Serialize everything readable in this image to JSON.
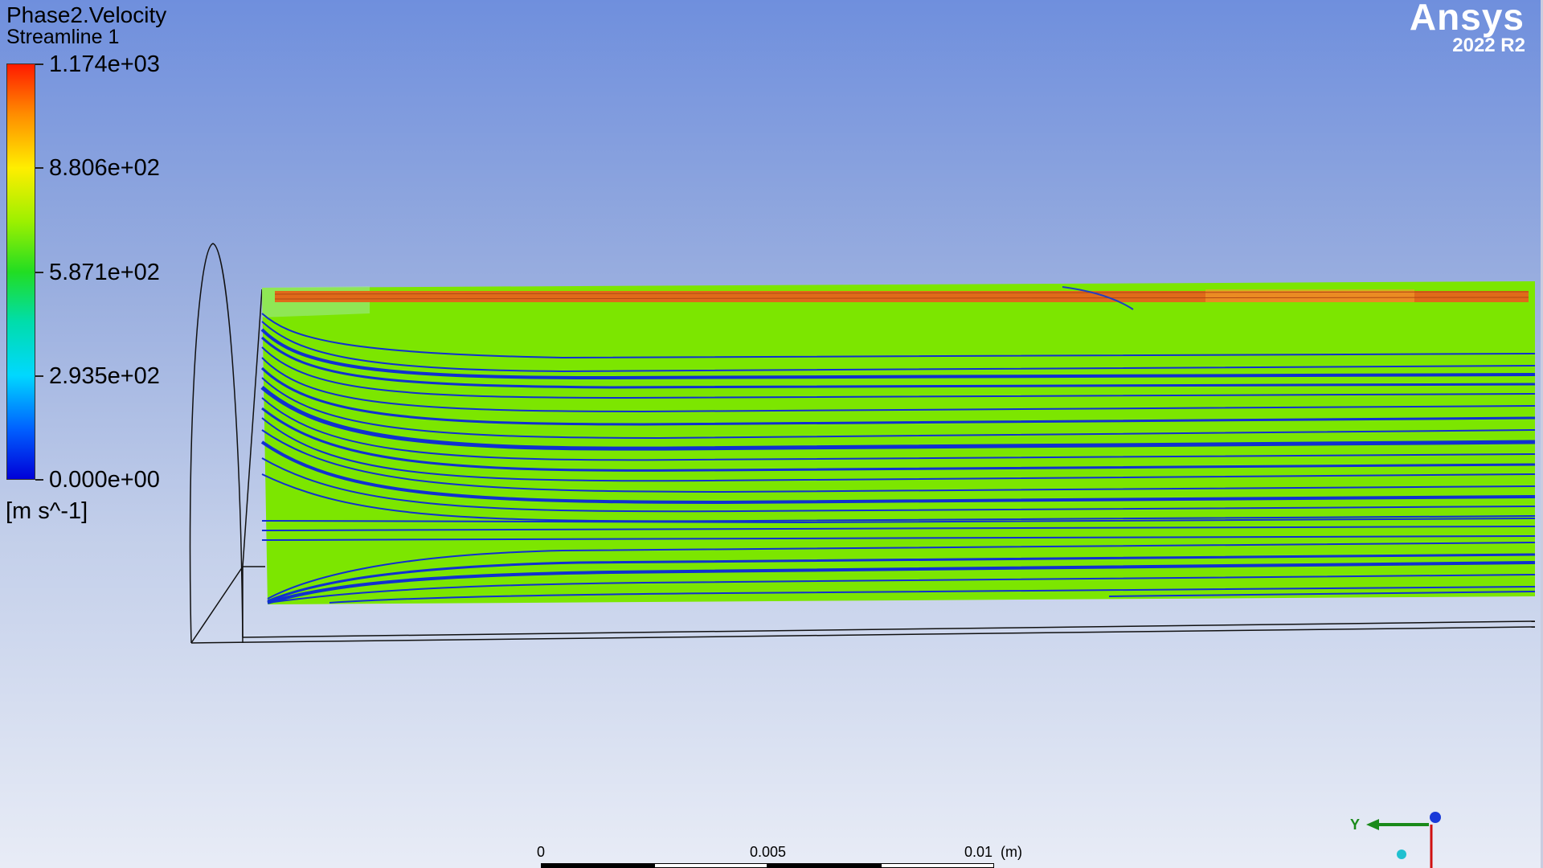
{
  "legend": {
    "title": "Phase2.Velocity",
    "subtitle": "Streamline 1",
    "ticks": [
      "1.174e+03",
      "8.806e+02",
      "5.871e+02",
      "2.935e+02",
      "0.000e+00"
    ],
    "unit": "[m s^-1]",
    "colormap": [
      "#ff1a00",
      "#ff8c00",
      "#ffee00",
      "#9cf000",
      "#22dd22",
      "#00ddaa",
      "#00d8ff",
      "#0060ff",
      "#0000d8"
    ]
  },
  "logo": {
    "brand": "Ansys",
    "version": "2022 R2"
  },
  "ruler": {
    "labels": [
      "0",
      "0.005",
      "0.01",
      "(m)"
    ]
  },
  "triad": {
    "y_label": "Y"
  },
  "colors": {
    "background_top": "#6f8fdd",
    "background_bottom": "#e8ecf6",
    "flow_field": "#7ce600",
    "streamline": "#1030d0",
    "jet": "#e06a1a"
  }
}
